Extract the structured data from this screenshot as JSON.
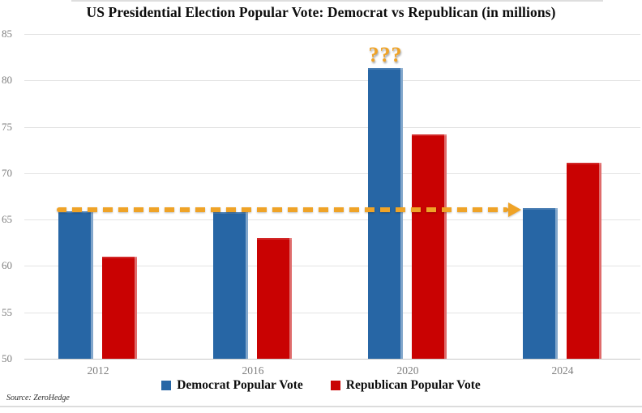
{
  "title": "US Presidential Election Popular Vote: Democrat vs Republican (in millions)",
  "source": "Source: ZeroHedge",
  "colors": {
    "democrat": "#2766A5",
    "republican": "#C90202",
    "annotation_gold": "#EFA327",
    "gridline": "#E3E3E3",
    "axis_text": "#7F7F7F"
  },
  "annotations": {
    "qmarks": {
      "text": "???",
      "color": "#EFA327",
      "position": "above 2020 Democrat bar"
    },
    "arrow": {
      "type": "dashed-arrow",
      "direction": "right",
      "y_value": 65.9,
      "from_category": "2012",
      "to_category": "2024",
      "color": "#EFA327",
      "meaning": "horizontal dashed reference line from 2012/2016 Democrat level pointing to 2024 Democrat bar"
    }
  },
  "chart_data": {
    "type": "bar",
    "title": "US Presidential Election Popular Vote: Democrat vs Republican (in millions)",
    "categories": [
      "2012",
      "2016",
      "2020",
      "2024"
    ],
    "series": [
      {
        "name": "Democrat Popular Vote",
        "color": "#2766A5",
        "values": [
          65.9,
          65.8,
          81.3,
          66.2
        ]
      },
      {
        "name": "Republican Popular Vote",
        "color": "#C90202",
        "values": [
          61.0,
          63.0,
          74.2,
          71.1
        ]
      }
    ],
    "xlabel": "",
    "ylabel": "",
    "ylim": [
      50,
      85
    ],
    "yticks": [
      50,
      55,
      60,
      65,
      70,
      75,
      80,
      85
    ],
    "grid": true,
    "legend_position": "bottom"
  }
}
